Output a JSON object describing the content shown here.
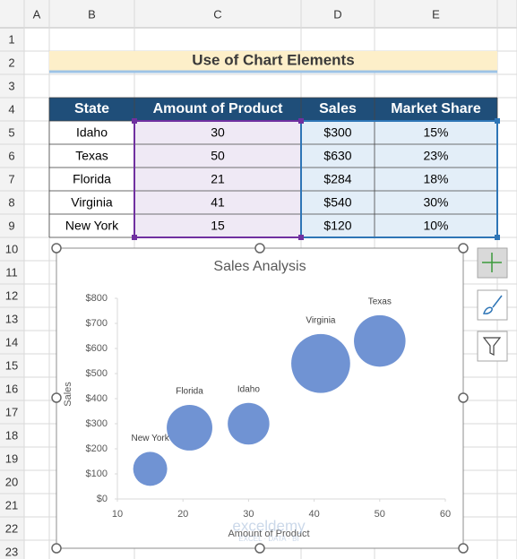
{
  "column_headers": [
    "A",
    "B",
    "C",
    "D",
    "E"
  ],
  "row_headers": [
    1,
    2,
    3,
    4,
    5,
    6,
    7,
    8,
    9,
    10,
    11,
    12,
    13,
    14,
    15,
    16,
    17,
    18,
    19,
    20,
    21,
    22,
    23
  ],
  "title": "Use of Chart Elements",
  "table": {
    "header": [
      "State",
      "Amount of Product",
      "Sales",
      "Market Share"
    ],
    "rows": [
      [
        "Idaho",
        30,
        "$300",
        "15%"
      ],
      [
        "Texas",
        50,
        "$630",
        "23%"
      ],
      [
        "Florida",
        21,
        "$284",
        "18%"
      ],
      [
        "Virginia",
        41,
        "$540",
        "30%"
      ],
      [
        "New York",
        15,
        "$120",
        "10%"
      ]
    ]
  },
  "chart_data": {
    "type": "bubble",
    "title": "Sales Analysis",
    "x_label": "Amount of Product",
    "y_label": "Sales",
    "labels": [
      "Idaho",
      "Texas",
      "Florida",
      "Virginia",
      "New York"
    ],
    "x": [
      30,
      50,
      21,
      41,
      15
    ],
    "values": [
      300,
      630,
      284,
      540,
      120
    ],
    "sizes": [
      15,
      23,
      18,
      30,
      10
    ],
    "color": "#7093d3",
    "xlim": [
      10,
      60
    ],
    "xticks": [
      10,
      20,
      30,
      40,
      50,
      60
    ],
    "ylim": [
      0,
      800
    ],
    "yticks": [
      {
        "value": 0,
        "label": "$0"
      },
      {
        "value": 100,
        "label": "$100"
      },
      {
        "value": 200,
        "label": "$200"
      },
      {
        "value": 300,
        "label": "$300"
      },
      {
        "value": 400,
        "label": "$400"
      },
      {
        "value": 500,
        "label": "$500"
      },
      {
        "value": 600,
        "label": "$600"
      },
      {
        "value": 700,
        "label": "$700"
      },
      {
        "value": 800,
        "label": "$800"
      }
    ]
  },
  "watermark": {
    "name": "exceldemy",
    "tagline": "EXCEL · DATA · BI"
  }
}
